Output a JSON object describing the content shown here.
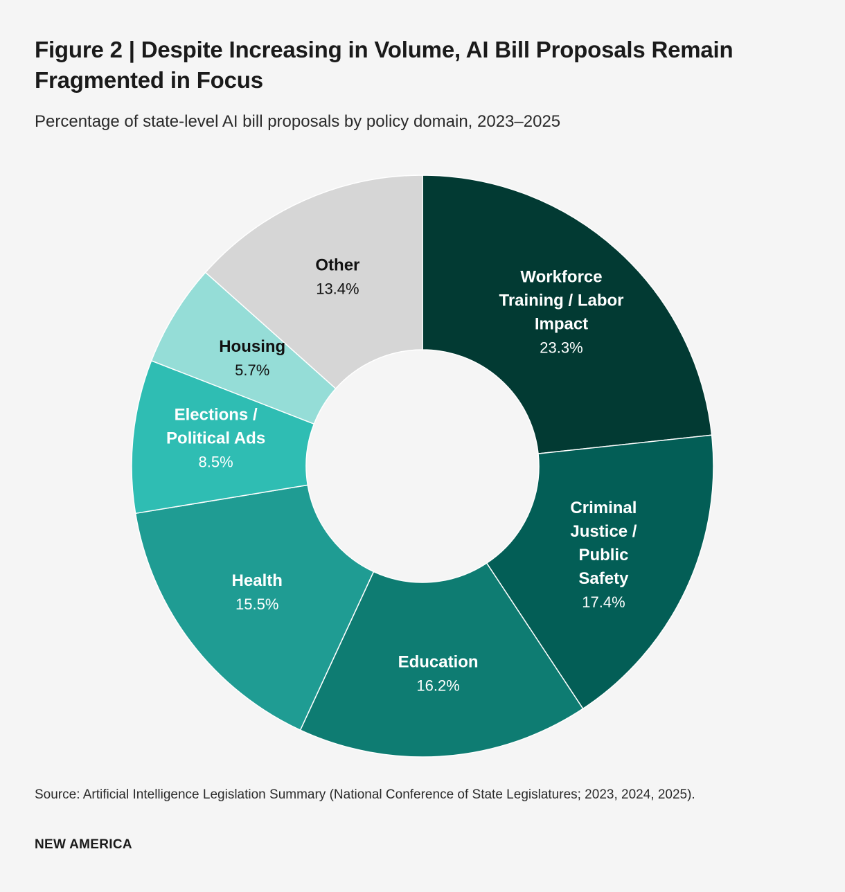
{
  "header": {
    "title": "Figure 2 | Despite Increasing in Volume, AI Bill Proposals Remain Fragmented in Focus",
    "subtitle": "Percentage of state-level AI bill proposals by policy domain, 2023–2025"
  },
  "footer": {
    "source": "Source: Artificial Intelligence Legislation Summary (National Conference of State Legislatures; 2023, 2024, 2025).",
    "brand": "NEW AMERICA"
  },
  "chart_data": {
    "type": "pie",
    "variant": "donut",
    "title": "Figure 2 | Despite Increasing in Volume, AI Bill Proposals Remain Fragmented in Focus",
    "subtitle": "Percentage of state-level AI bill proposals by policy domain, 2023–2025",
    "unit": "%",
    "slices": [
      {
        "label": [
          "Workforce",
          "Training / Labor",
          "Impact"
        ],
        "value": 23.3,
        "value_text": "23.3%",
        "color": "#023a33",
        "text_color": "#ffffff"
      },
      {
        "label": [
          "Criminal",
          "Justice /",
          "Public",
          "Safety"
        ],
        "value": 17.4,
        "value_text": "17.4%",
        "color": "#035e56",
        "text_color": "#ffffff"
      },
      {
        "label": [
          "Education"
        ],
        "value": 16.2,
        "value_text": "16.2%",
        "color": "#0e7c72",
        "text_color": "#ffffff"
      },
      {
        "label": [
          "Health"
        ],
        "value": 15.5,
        "value_text": "15.5%",
        "color": "#1f9c93",
        "text_color": "#ffffff"
      },
      {
        "label": [
          "Elections /",
          "Political Ads"
        ],
        "value": 8.5,
        "value_text": "8.5%",
        "color": "#2fbdb3",
        "text_color": "#ffffff"
      },
      {
        "label": [
          "Housing"
        ],
        "value": 5.7,
        "value_text": "5.7%",
        "color": "#95ddd7",
        "text_color": "#111111"
      },
      {
        "label": [
          "Other"
        ],
        "value": 13.4,
        "value_text": "13.4%",
        "color": "#d6d6d6",
        "text_color": "#111111"
      }
    ],
    "legend": "none"
  }
}
